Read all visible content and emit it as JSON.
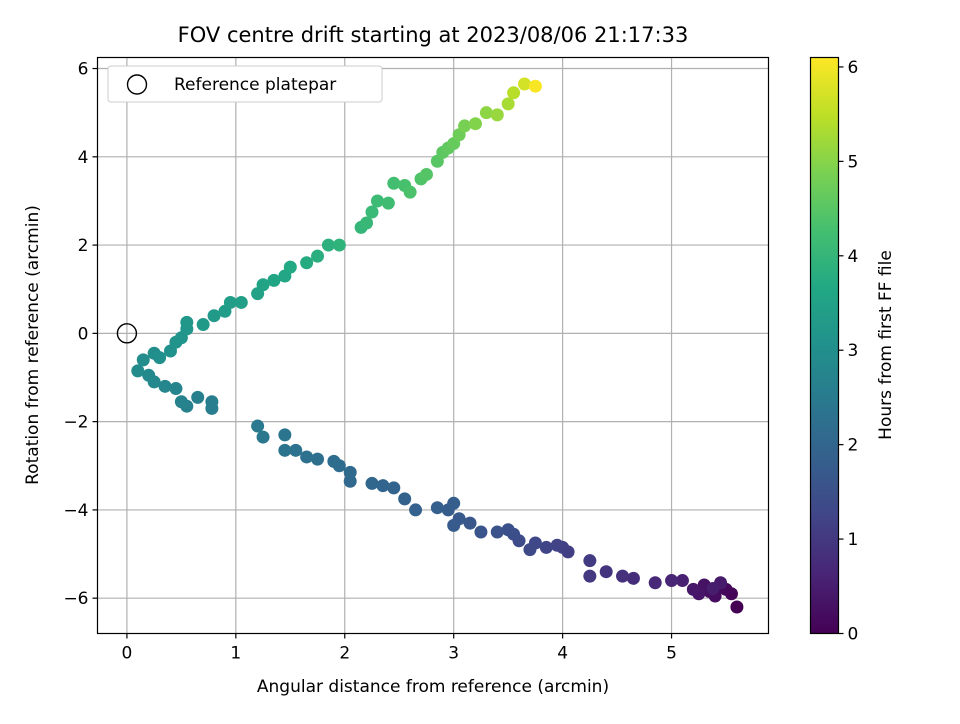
{
  "chart_data": {
    "type": "scatter",
    "title": "FOV centre drift starting at 2023/08/06 21:17:33",
    "xlabel": "Angular distance from reference (arcmin)",
    "ylabel": "Rotation from reference (arcmin)",
    "xlim": [
      -0.27,
      5.89
    ],
    "ylim": [
      -6.8,
      6.25
    ],
    "xticks": [
      0,
      1,
      2,
      3,
      4,
      5
    ],
    "yticks": [
      -6,
      -4,
      -2,
      0,
      2,
      4,
      6
    ],
    "grid": true,
    "legend": {
      "placement": "upper-left",
      "entries": [
        "Reference platepar"
      ]
    },
    "reference_point": {
      "x": 0,
      "y": 0,
      "marker": "open-circle",
      "label": "Reference platepar"
    },
    "colorbar": {
      "label": "Hours from first FF file",
      "colormap": "viridis",
      "range": [
        0,
        6.1
      ],
      "ticks": [
        0,
        1,
        2,
        3,
        4,
        5,
        6
      ]
    },
    "series": [
      {
        "colored_by": "hours",
        "points": [
          {
            "x": 5.6,
            "y": -6.2,
            "c": 0.0
          },
          {
            "x": 5.55,
            "y": -5.9,
            "c": 0.05
          },
          {
            "x": 5.5,
            "y": -5.8,
            "c": 0.1
          },
          {
            "x": 5.45,
            "y": -5.75,
            "c": 0.15
          },
          {
            "x": 5.4,
            "y": -5.95,
            "c": 0.2
          },
          {
            "x": 5.35,
            "y": -5.85,
            "c": 0.25
          },
          {
            "x": 5.3,
            "y": -5.7,
            "c": 0.3
          },
          {
            "x": 5.25,
            "y": -5.9,
            "c": 0.35
          },
          {
            "x": 5.2,
            "y": -5.8,
            "c": 0.4
          },
          {
            "x": 5.45,
            "y": -5.65,
            "c": 0.45
          },
          {
            "x": 5.38,
            "y": -5.78,
            "c": 0.48
          },
          {
            "x": 5.1,
            "y": -5.6,
            "c": 0.55
          },
          {
            "x": 5.0,
            "y": -5.6,
            "c": 0.62
          },
          {
            "x": 4.85,
            "y": -5.65,
            "c": 0.7
          },
          {
            "x": 4.65,
            "y": -5.55,
            "c": 0.78
          },
          {
            "x": 4.55,
            "y": -5.5,
            "c": 0.85
          },
          {
            "x": 4.4,
            "y": -5.4,
            "c": 0.92
          },
          {
            "x": 4.25,
            "y": -5.5,
            "c": 1.0
          },
          {
            "x": 4.25,
            "y": -5.15,
            "c": 1.05
          },
          {
            "x": 4.05,
            "y": -4.95,
            "c": 1.1
          },
          {
            "x": 4.0,
            "y": -4.85,
            "c": 1.15
          },
          {
            "x": 3.95,
            "y": -4.8,
            "c": 1.2
          },
          {
            "x": 3.85,
            "y": -4.85,
            "c": 1.25
          },
          {
            "x": 3.75,
            "y": -4.75,
            "c": 1.3
          },
          {
            "x": 3.7,
            "y": -4.9,
            "c": 1.35
          },
          {
            "x": 3.6,
            "y": -4.7,
            "c": 1.4
          },
          {
            "x": 3.55,
            "y": -4.55,
            "c": 1.45
          },
          {
            "x": 3.5,
            "y": -4.45,
            "c": 1.5
          },
          {
            "x": 3.4,
            "y": -4.5,
            "c": 1.55
          },
          {
            "x": 3.25,
            "y": -4.5,
            "c": 1.6
          },
          {
            "x": 3.15,
            "y": -4.3,
            "c": 1.65
          },
          {
            "x": 3.05,
            "y": -4.2,
            "c": 1.7
          },
          {
            "x": 3.0,
            "y": -4.35,
            "c": 1.73
          },
          {
            "x": 2.95,
            "y": -4.0,
            "c": 1.76
          },
          {
            "x": 3.0,
            "y": -3.85,
            "c": 1.8
          },
          {
            "x": 2.85,
            "y": -3.95,
            "c": 1.84
          },
          {
            "x": 2.65,
            "y": -4.0,
            "c": 1.88
          },
          {
            "x": 2.55,
            "y": -3.75,
            "c": 1.92
          },
          {
            "x": 2.45,
            "y": -3.5,
            "c": 1.95
          },
          {
            "x": 2.35,
            "y": -3.45,
            "c": 1.98
          },
          {
            "x": 2.25,
            "y": -3.4,
            "c": 2.02
          },
          {
            "x": 2.05,
            "y": -3.35,
            "c": 2.06
          },
          {
            "x": 2.05,
            "y": -3.15,
            "c": 2.1
          },
          {
            "x": 1.95,
            "y": -3.0,
            "c": 2.14
          },
          {
            "x": 1.9,
            "y": -2.9,
            "c": 2.18
          },
          {
            "x": 1.75,
            "y": -2.85,
            "c": 2.22
          },
          {
            "x": 1.65,
            "y": -2.8,
            "c": 2.26
          },
          {
            "x": 1.55,
            "y": -2.65,
            "c": 2.3
          },
          {
            "x": 1.45,
            "y": -2.65,
            "c": 2.34
          },
          {
            "x": 1.45,
            "y": -2.3,
            "c": 2.38
          },
          {
            "x": 1.25,
            "y": -2.35,
            "c": 2.42
          },
          {
            "x": 1.2,
            "y": -2.1,
            "c": 2.46
          },
          {
            "x": 0.78,
            "y": -1.7,
            "c": 2.55
          },
          {
            "x": 0.78,
            "y": -1.55,
            "c": 2.58
          },
          {
            "x": 0.65,
            "y": -1.45,
            "c": 2.62
          },
          {
            "x": 0.55,
            "y": -1.65,
            "c": 2.66
          },
          {
            "x": 0.5,
            "y": -1.55,
            "c": 2.7
          },
          {
            "x": 0.45,
            "y": -1.25,
            "c": 2.74
          },
          {
            "x": 0.35,
            "y": -1.2,
            "c": 2.78
          },
          {
            "x": 0.25,
            "y": -1.1,
            "c": 2.82
          },
          {
            "x": 0.2,
            "y": -0.95,
            "c": 2.86
          },
          {
            "x": 0.1,
            "y": -0.85,
            "c": 2.9
          },
          {
            "x": 0.15,
            "y": -0.6,
            "c": 2.94
          },
          {
            "x": 0.25,
            "y": -0.45,
            "c": 2.98
          },
          {
            "x": 0.3,
            "y": -0.55,
            "c": 3.02
          },
          {
            "x": 0.4,
            "y": -0.4,
            "c": 3.06
          },
          {
            "x": 0.45,
            "y": -0.2,
            "c": 3.1
          },
          {
            "x": 0.5,
            "y": -0.1,
            "c": 3.14
          },
          {
            "x": 0.55,
            "y": 0.1,
            "c": 3.18
          },
          {
            "x": 0.55,
            "y": 0.25,
            "c": 3.22
          },
          {
            "x": 0.7,
            "y": 0.2,
            "c": 3.26
          },
          {
            "x": 0.8,
            "y": 0.4,
            "c": 3.3
          },
          {
            "x": 0.9,
            "y": 0.5,
            "c": 3.34
          },
          {
            "x": 0.95,
            "y": 0.7,
            "c": 3.38
          },
          {
            "x": 1.05,
            "y": 0.7,
            "c": 3.42
          },
          {
            "x": 1.2,
            "y": 0.9,
            "c": 3.48
          },
          {
            "x": 1.25,
            "y": 1.1,
            "c": 3.52
          },
          {
            "x": 1.35,
            "y": 1.2,
            "c": 3.58
          },
          {
            "x": 1.45,
            "y": 1.3,
            "c": 3.62
          },
          {
            "x": 1.5,
            "y": 1.5,
            "c": 3.68
          },
          {
            "x": 1.65,
            "y": 1.6,
            "c": 3.74
          },
          {
            "x": 1.75,
            "y": 1.75,
            "c": 3.8
          },
          {
            "x": 1.85,
            "y": 2.0,
            "c": 3.86
          },
          {
            "x": 1.95,
            "y": 2.0,
            "c": 3.92
          },
          {
            "x": 2.15,
            "y": 2.4,
            "c": 4.0
          },
          {
            "x": 2.2,
            "y": 2.5,
            "c": 4.05
          },
          {
            "x": 2.25,
            "y": 2.75,
            "c": 4.1
          },
          {
            "x": 2.3,
            "y": 3.0,
            "c": 4.15
          },
          {
            "x": 2.4,
            "y": 2.95,
            "c": 4.2
          },
          {
            "x": 2.45,
            "y": 3.4,
            "c": 4.25
          },
          {
            "x": 2.55,
            "y": 3.35,
            "c": 4.3
          },
          {
            "x": 2.6,
            "y": 3.2,
            "c": 4.35
          },
          {
            "x": 2.7,
            "y": 3.5,
            "c": 4.4
          },
          {
            "x": 2.75,
            "y": 3.6,
            "c": 4.45
          },
          {
            "x": 2.85,
            "y": 3.9,
            "c": 4.5
          },
          {
            "x": 2.9,
            "y": 4.1,
            "c": 4.55
          },
          {
            "x": 2.95,
            "y": 4.2,
            "c": 4.6
          },
          {
            "x": 3.0,
            "y": 4.3,
            "c": 4.65
          },
          {
            "x": 3.05,
            "y": 4.5,
            "c": 4.75
          },
          {
            "x": 3.1,
            "y": 4.7,
            "c": 4.85
          },
          {
            "x": 3.2,
            "y": 4.75,
            "c": 4.95
          },
          {
            "x": 3.3,
            "y": 5.0,
            "c": 5.05
          },
          {
            "x": 3.4,
            "y": 4.95,
            "c": 5.15
          },
          {
            "x": 3.5,
            "y": 5.2,
            "c": 5.3
          },
          {
            "x": 3.55,
            "y": 5.45,
            "c": 5.45
          },
          {
            "x": 3.65,
            "y": 5.65,
            "c": 5.7
          },
          {
            "x": 3.75,
            "y": 5.6,
            "c": 6.05
          }
        ]
      }
    ]
  }
}
